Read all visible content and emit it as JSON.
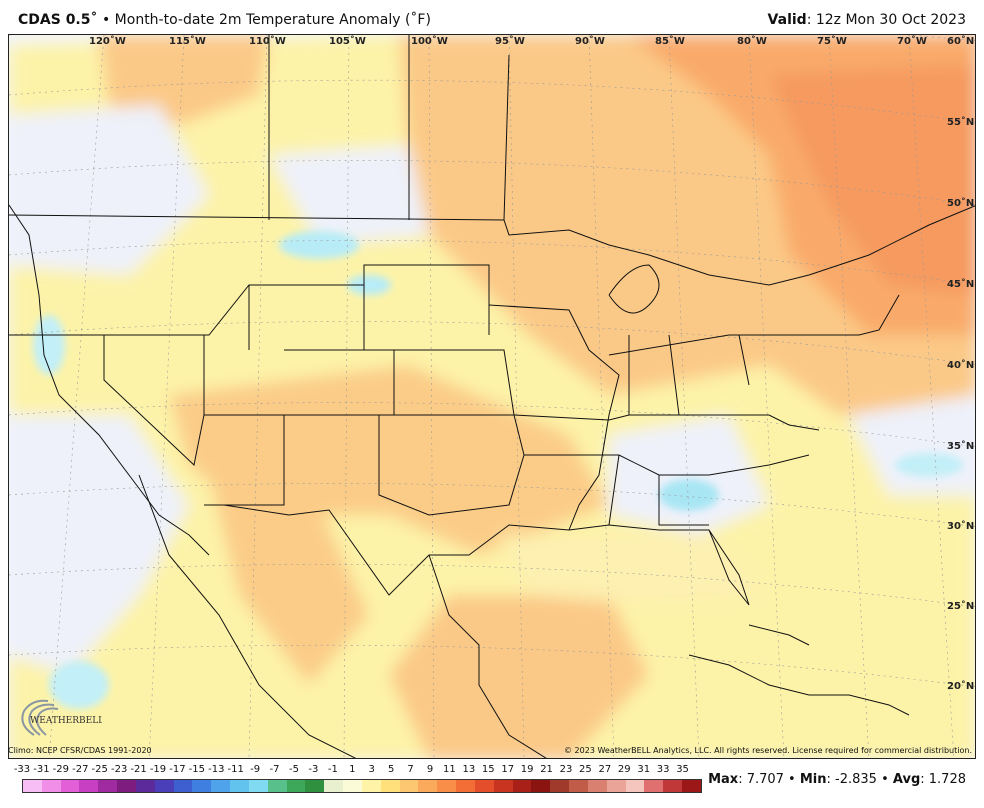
{
  "header": {
    "model": "CDAS 0.5˚",
    "bullet": "•",
    "description": "Month-to-date 2m Temperature Anomaly (˚F)",
    "valid_label": "Valid",
    "valid_time": ": 12z Mon 30 Oct 2023"
  },
  "longitudes": [
    "120˚W",
    "115˚W",
    "110˚W",
    "105˚W",
    "100˚W",
    "95˚W",
    "90˚W",
    "85˚W",
    "80˚W",
    "75˚W",
    "70˚W"
  ],
  "latitudes": [
    "60˚N",
    "55˚N",
    "50˚N",
    "45˚N",
    "40˚N",
    "35˚N",
    "30˚N",
    "25˚N",
    "20˚N"
  ],
  "footer": {
    "climo": "Climo: NCEP CFSR/CDAS 1991-2020",
    "copyright": "© 2023 WeatherBELL Analytics, LLC. All rights reserved. License required for commercial distribution."
  },
  "logo": {
    "name": "WeatherBELL",
    "icon": "weatherbell-swirl-logo"
  },
  "scale": {
    "labels": [
      "-33",
      "-31",
      "-29",
      "-27",
      "-25",
      "-23",
      "-21",
      "-19",
      "-17",
      "-15",
      "-13",
      "-11",
      "-9",
      "-7",
      "-5",
      "-3",
      "-1",
      "1",
      "3",
      "5",
      "7",
      "9",
      "11",
      "13",
      "15",
      "17",
      "19",
      "21",
      "23",
      "25",
      "27",
      "29",
      "31",
      "33",
      "35"
    ],
    "colors": [
      "#f7bdf5",
      "#f08ee8",
      "#e35fd8",
      "#c93fc3",
      "#a02aa0",
      "#7e1c80",
      "#5c2a9a",
      "#4a3fb8",
      "#3d5fd0",
      "#3f7fe0",
      "#4ea3ea",
      "#63c3ef",
      "#7fdaf2",
      "#58c08a",
      "#3ea85a",
      "#2f9040",
      "#e8f0d0",
      "#fbfbd8",
      "#fff3a8",
      "#ffe07a",
      "#fdc670",
      "#fbaa5c",
      "#f98e48",
      "#f36e36",
      "#e44e2a",
      "#c83420",
      "#a82018",
      "#8c1410",
      "#a03a2a",
      "#c05c48",
      "#d98070",
      "#eaa498",
      "#f5c6be",
      "#e07070",
      "#c03838",
      "#9c1818"
    ]
  },
  "stats": {
    "max_label": "Max",
    "max_value": ": 7.707",
    "min_label": "Min",
    "min_value": ": -2.835",
    "avg_label": "Avg",
    "avg_value": ": 1.728",
    "separator": " • "
  }
}
